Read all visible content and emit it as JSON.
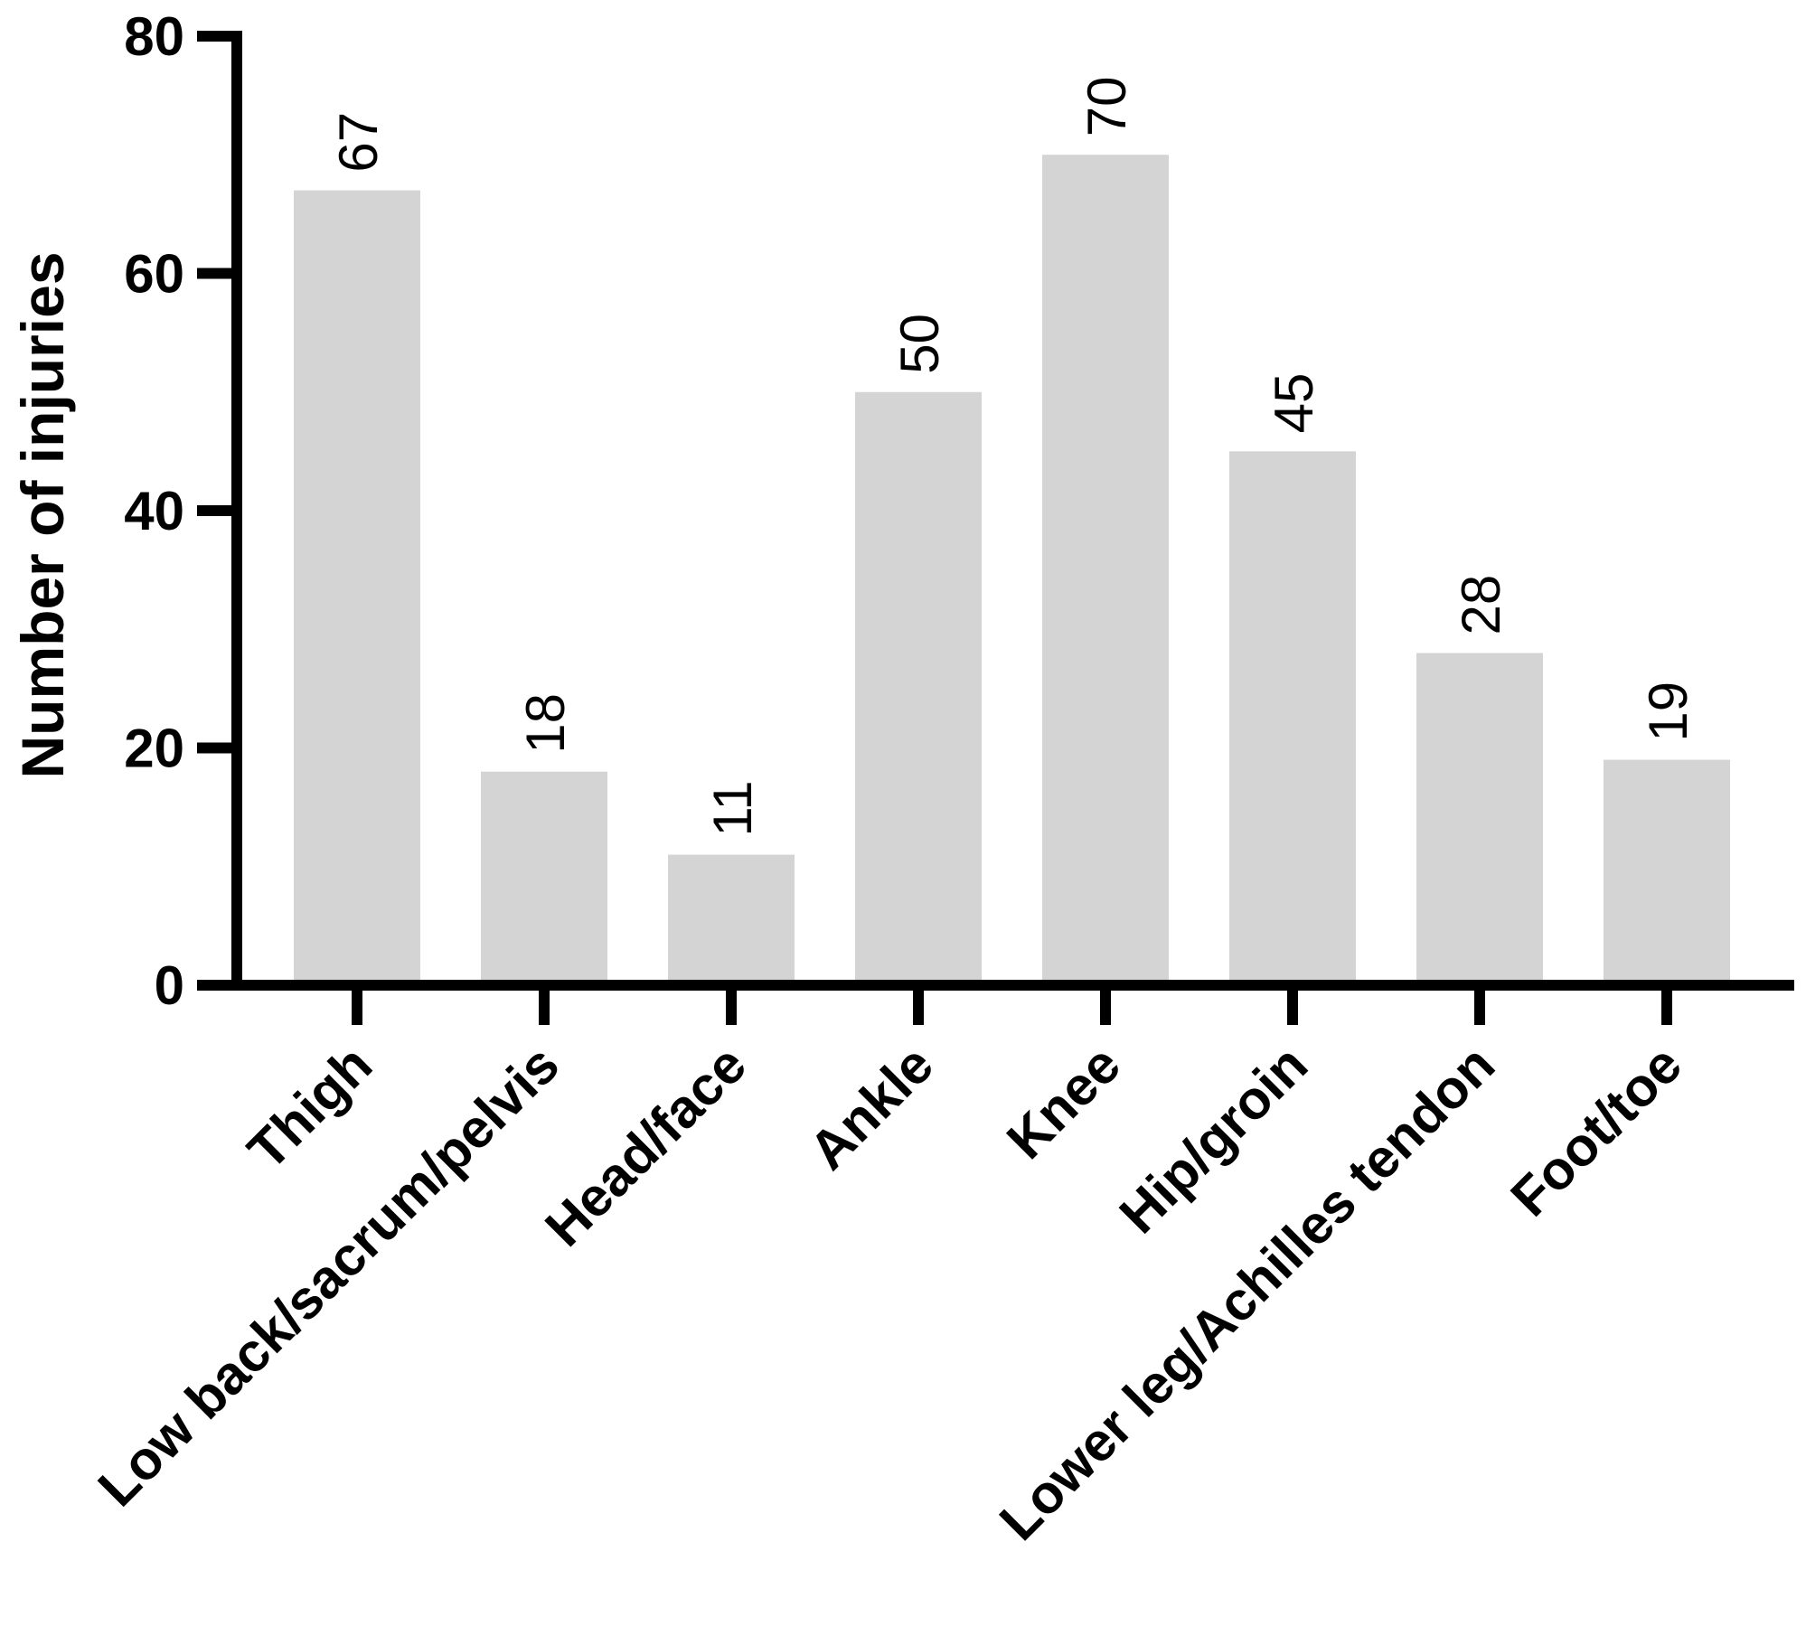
{
  "chart_data": {
    "type": "bar",
    "title": "",
    "xlabel": "",
    "ylabel": "Number of injuries",
    "ylim": [
      0,
      80
    ],
    "yticks": [
      0,
      20,
      40,
      60,
      80
    ],
    "grid": false,
    "categories": [
      "Thigh",
      "Low back/sacrum/pelvis",
      "Head/face",
      "Ankle",
      "Knee",
      "Hip/groin",
      "Lower leg/Achilles tendon",
      "Foot/toe"
    ],
    "values": [
      67,
      18,
      11,
      50,
      70,
      45,
      28,
      19
    ],
    "data_labels": [
      "67",
      "18",
      "11",
      "50",
      "70",
      "45",
      "28",
      "19"
    ],
    "colors": {
      "bar": "#d4d4d4",
      "axis": "#000000"
    }
  }
}
